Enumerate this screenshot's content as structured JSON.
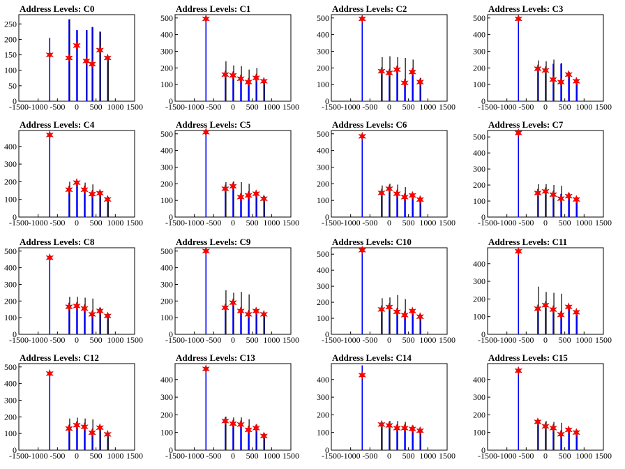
{
  "chart_data": [
    {
      "type": "bar",
      "title": "Address Levels: C0",
      "xlim": [
        -1500,
        1500
      ],
      "ylim": [
        0,
        280
      ],
      "yticks": [
        0,
        50,
        100,
        150,
        200,
        250
      ],
      "xticks": [
        -1500,
        -1000,
        -500,
        0,
        500,
        1000,
        1500
      ],
      "x": [
        -700,
        -200,
        0,
        250,
        400,
        600,
        800
      ],
      "values": [
        205,
        265,
        230,
        230,
        240,
        225,
        140
      ],
      "black_values": [
        0,
        265,
        230,
        230,
        240,
        225,
        140
      ],
      "markers": [
        150,
        140,
        180,
        130,
        120,
        165,
        140
      ],
      "markers_x": [
        -700,
        -200,
        0,
        250,
        400,
        600,
        800
      ]
    },
    {
      "type": "bar",
      "title": "Address Levels: C1",
      "xlim": [
        -1500,
        1500
      ],
      "ylim": [
        0,
        520
      ],
      "yticks": [
        0,
        100,
        200,
        300,
        400,
        500
      ],
      "xticks": [
        -1500,
        -1000,
        -500,
        0,
        500,
        1000,
        1500
      ],
      "x": [
        -700,
        -200,
        0,
        200,
        400,
        600,
        800
      ],
      "values": [
        500,
        175,
        165,
        150,
        135,
        145,
        125
      ],
      "black_values": [
        0,
        240,
        215,
        210,
        190,
        200,
        130
      ],
      "markers": [
        495,
        160,
        155,
        135,
        115,
        140,
        120
      ],
      "markers_x": [
        -700,
        -200,
        0,
        200,
        400,
        600,
        800
      ]
    },
    {
      "type": "bar",
      "title": "Address Levels: C2",
      "xlim": [
        -1500,
        1500
      ],
      "ylim": [
        0,
        520
      ],
      "yticks": [
        0,
        100,
        200,
        300,
        400,
        500
      ],
      "xticks": [
        -1500,
        -1000,
        -500,
        0,
        500,
        1000,
        1500
      ],
      "x": [
        -700,
        -200,
        0,
        200,
        400,
        600,
        800
      ],
      "values": [
        500,
        195,
        185,
        200,
        130,
        185,
        125
      ],
      "black_values": [
        0,
        265,
        270,
        265,
        260,
        250,
        140
      ],
      "markers": [
        495,
        180,
        170,
        190,
        110,
        175,
        115
      ],
      "markers_x": [
        -700,
        -200,
        0,
        200,
        400,
        600,
        800
      ]
    },
    {
      "type": "bar",
      "title": "Address Levels: C3",
      "xlim": [
        -1500,
        1500
      ],
      "ylim": [
        0,
        520
      ],
      "yticks": [
        0,
        100,
        200,
        300,
        400,
        500
      ],
      "xticks": [
        -1500,
        -1000,
        -500,
        0,
        500,
        1000,
        1500
      ],
      "x": [
        -700,
        -200,
        0,
        200,
        400,
        600,
        800
      ],
      "values": [
        500,
        210,
        200,
        225,
        225,
        170,
        130
      ],
      "black_values": [
        0,
        245,
        240,
        250,
        230,
        175,
        135
      ],
      "markers": [
        495,
        195,
        185,
        130,
        115,
        160,
        120
      ],
      "markers_x": [
        -700,
        -200,
        0,
        200,
        400,
        600,
        800
      ]
    },
    {
      "type": "bar",
      "title": "Address Levels: C4",
      "xlim": [
        -1500,
        1500
      ],
      "ylim": [
        0,
        490
      ],
      "yticks": [
        0,
        100,
        200,
        300,
        400
      ],
      "xticks": [
        -1500,
        -1000,
        -500,
        0,
        500,
        1000,
        1500
      ],
      "x": [
        -700,
        -200,
        0,
        200,
        400,
        600,
        800
      ],
      "values": [
        470,
        175,
        205,
        160,
        140,
        140,
        110
      ],
      "black_values": [
        0,
        200,
        205,
        195,
        185,
        150,
        115
      ],
      "markers": [
        465,
        155,
        195,
        155,
        130,
        135,
        100
      ],
      "markers_x": [
        -700,
        -200,
        0,
        200,
        400,
        600,
        800
      ]
    },
    {
      "type": "bar",
      "title": "Address Levels: C5",
      "xlim": [
        -1500,
        1500
      ],
      "ylim": [
        0,
        520
      ],
      "yticks": [
        0,
        100,
        200,
        300,
        400,
        500
      ],
      "xticks": [
        -1500,
        -1000,
        -500,
        0,
        500,
        1000,
        1500
      ],
      "x": [
        -700,
        -200,
        0,
        200,
        400,
        600,
        800
      ],
      "values": [
        515,
        180,
        195,
        140,
        140,
        145,
        120
      ],
      "black_values": [
        0,
        210,
        215,
        210,
        200,
        150,
        125
      ],
      "markers": [
        510,
        170,
        185,
        120,
        130,
        140,
        110
      ],
      "markers_x": [
        -700,
        -200,
        0,
        200,
        400,
        600,
        800
      ]
    },
    {
      "type": "bar",
      "title": "Address Levels: C6",
      "xlim": [
        -1500,
        1500
      ],
      "ylim": [
        0,
        520
      ],
      "yticks": [
        0,
        100,
        200,
        300,
        400,
        500
      ],
      "xticks": [
        -1500,
        -1000,
        -500,
        0,
        500,
        1000,
        1500
      ],
      "x": [
        -700,
        -200,
        0,
        200,
        400,
        600,
        800
      ],
      "values": [
        490,
        160,
        180,
        150,
        140,
        140,
        115
      ],
      "black_values": [
        0,
        190,
        200,
        195,
        180,
        145,
        120
      ],
      "markers": [
        485,
        145,
        170,
        140,
        120,
        130,
        105
      ],
      "markers_x": [
        -700,
        -200,
        0,
        200,
        400,
        600,
        800
      ]
    },
    {
      "type": "bar",
      "title": "Address Levels: C7",
      "xlim": [
        -1500,
        1500
      ],
      "ylim": [
        0,
        540
      ],
      "yticks": [
        0,
        100,
        200,
        300,
        400,
        500
      ],
      "xticks": [
        -1500,
        -1000,
        -500,
        0,
        500,
        1000,
        1500
      ],
      "x": [
        -700,
        -200,
        0,
        200,
        400,
        600,
        800
      ],
      "values": [
        530,
        175,
        180,
        155,
        145,
        140,
        120
      ],
      "black_values": [
        0,
        205,
        205,
        200,
        195,
        150,
        125
      ],
      "markers": [
        525,
        150,
        160,
        140,
        115,
        130,
        110
      ],
      "markers_x": [
        -700,
        -200,
        0,
        200,
        400,
        600,
        800
      ]
    },
    {
      "type": "bar",
      "title": "Address Levels: C8",
      "xlim": [
        -1500,
        1500
      ],
      "ylim": [
        0,
        520
      ],
      "yticks": [
        0,
        100,
        200,
        300,
        400,
        500
      ],
      "xticks": [
        -1500,
        -1000,
        -500,
        0,
        500,
        1000,
        1500
      ],
      "x": [
        -700,
        -200,
        0,
        200,
        400,
        600,
        800
      ],
      "values": [
        470,
        190,
        185,
        170,
        130,
        150,
        120
      ],
      "black_values": [
        0,
        225,
        225,
        220,
        215,
        160,
        125
      ],
      "markers": [
        460,
        165,
        170,
        155,
        120,
        140,
        110
      ],
      "markers_x": [
        -700,
        -200,
        0,
        200,
        400,
        600,
        800
      ]
    },
    {
      "type": "bar",
      "title": "Address Levels: C9",
      "xlim": [
        -1500,
        1500
      ],
      "ylim": [
        0,
        520
      ],
      "yticks": [
        0,
        100,
        200,
        300,
        400,
        500
      ],
      "xticks": [
        -1500,
        -1000,
        -500,
        0,
        500,
        1000,
        1500
      ],
      "x": [
        -700,
        -200,
        0,
        200,
        400,
        600,
        800
      ],
      "values": [
        505,
        175,
        200,
        150,
        140,
        145,
        125
      ],
      "black_values": [
        0,
        265,
        250,
        255,
        240,
        150,
        130
      ],
      "markers": [
        500,
        160,
        190,
        140,
        120,
        140,
        120
      ],
      "markers_x": [
        -700,
        -200,
        0,
        200,
        400,
        600,
        800
      ]
    },
    {
      "type": "bar",
      "title": "Address Levels: C10",
      "xlim": [
        -1500,
        1500
      ],
      "ylim": [
        0,
        540
      ],
      "yticks": [
        0,
        100,
        200,
        300,
        400,
        500
      ],
      "xticks": [
        -1500,
        -1000,
        -500,
        0,
        500,
        1000,
        1500
      ],
      "x": [
        -700,
        -200,
        0,
        200,
        400,
        600,
        800
      ],
      "values": [
        530,
        175,
        180,
        150,
        140,
        150,
        120
      ],
      "black_values": [
        0,
        225,
        230,
        245,
        220,
        155,
        125
      ],
      "markers": [
        525,
        155,
        170,
        140,
        120,
        145,
        110
      ],
      "markers_x": [
        -700,
        -200,
        0,
        200,
        400,
        600,
        800
      ]
    },
    {
      "type": "bar",
      "title": "Address Levels: C11",
      "xlim": [
        -1500,
        1500
      ],
      "ylim": [
        0,
        490
      ],
      "yticks": [
        0,
        100,
        200,
        300,
        400
      ],
      "xticks": [
        -1500,
        -1000,
        -500,
        0,
        500,
        1000,
        1500
      ],
      "x": [
        -700,
        -200,
        0,
        200,
        400,
        600,
        800
      ],
      "values": [
        475,
        160,
        170,
        150,
        125,
        160,
        130
      ],
      "black_values": [
        0,
        270,
        240,
        235,
        230,
        165,
        135
      ],
      "markers": [
        470,
        145,
        165,
        140,
        110,
        155,
        125
      ],
      "markers_x": [
        -700,
        -200,
        0,
        200,
        400,
        600,
        800
      ]
    },
    {
      "type": "bar",
      "title": "Address Levels: C12",
      "xlim": [
        -1500,
        1500
      ],
      "ylim": [
        0,
        520
      ],
      "yticks": [
        0,
        100,
        200,
        300,
        400,
        500
      ],
      "xticks": [
        -1500,
        -1000,
        -500,
        0,
        500,
        1000,
        1500
      ],
      "x": [
        -700,
        -200,
        0,
        200,
        400,
        600,
        800
      ],
      "values": [
        465,
        150,
        165,
        145,
        120,
        140,
        100
      ],
      "black_values": [
        0,
        190,
        195,
        190,
        185,
        145,
        105
      ],
      "markers": [
        460,
        130,
        150,
        140,
        105,
        135,
        95
      ],
      "markers_x": [
        -700,
        -200,
        0,
        200,
        400,
        600,
        800
      ]
    },
    {
      "type": "bar",
      "title": "Address Levels: C13",
      "xlim": [
        -1500,
        1500
      ],
      "ylim": [
        0,
        490
      ],
      "yticks": [
        0,
        100,
        200,
        300,
        400
      ],
      "xticks": [
        -1500,
        -1000,
        -500,
        0,
        500,
        1000,
        1500
      ],
      "x": [
        -700,
        -200,
        0,
        200,
        400,
        600,
        800
      ],
      "values": [
        470,
        170,
        160,
        150,
        130,
        140,
        90
      ],
      "black_values": [
        0,
        190,
        185,
        185,
        175,
        145,
        95
      ],
      "markers": [
        460,
        165,
        150,
        145,
        115,
        125,
        80
      ],
      "markers_x": [
        -700,
        -200,
        0,
        200,
        400,
        600,
        800
      ]
    },
    {
      "type": "bar",
      "title": "Address Levels: C14",
      "xlim": [
        -1500,
        1500
      ],
      "ylim": [
        0,
        490
      ],
      "yticks": [
        0,
        100,
        200,
        300,
        400
      ],
      "xticks": [
        -1500,
        -1000,
        -500,
        0,
        500,
        1000,
        1500
      ],
      "x": [
        -700,
        -200,
        0,
        200,
        400,
        600,
        800
      ],
      "values": [
        480,
        155,
        155,
        135,
        135,
        135,
        115
      ],
      "black_values": [
        0,
        160,
        165,
        165,
        160,
        140,
        120
      ],
      "markers": [
        425,
        145,
        140,
        125,
        125,
        120,
        110
      ],
      "markers_x": [
        -700,
        -200,
        0,
        200,
        400,
        600,
        800
      ]
    },
    {
      "type": "bar",
      "title": "Address Levels: C15",
      "xlim": [
        -1500,
        1500
      ],
      "ylim": [
        0,
        490
      ],
      "yticks": [
        0,
        100,
        200,
        300,
        400
      ],
      "xticks": [
        -1500,
        -1000,
        -500,
        0,
        500,
        1000,
        1500
      ],
      "x": [
        -700,
        -200,
        0,
        200,
        400,
        600,
        800
      ],
      "values": [
        455,
        170,
        150,
        140,
        110,
        120,
        110
      ],
      "black_values": [
        0,
        175,
        165,
        160,
        155,
        125,
        115
      ],
      "markers": [
        450,
        160,
        135,
        125,
        90,
        115,
        100
      ],
      "markers_x": [
        -700,
        -200,
        0,
        200,
        400,
        600,
        800
      ]
    }
  ],
  "colors": {
    "blue": "#0000ff",
    "black": "#000000",
    "marker": "#ff0000",
    "axis": "#000000"
  }
}
